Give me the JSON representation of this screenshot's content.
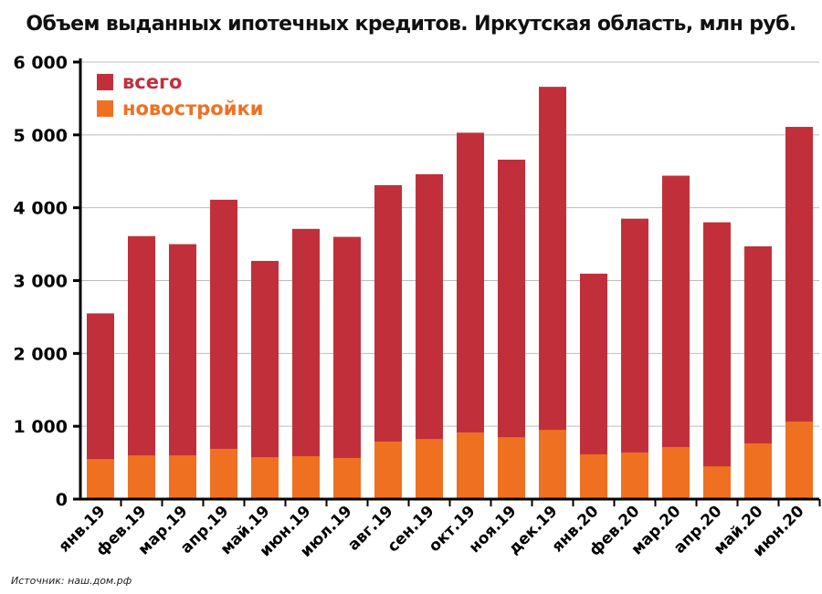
{
  "chart_data": {
    "type": "bar",
    "title": "Объем выданных ипотечных кредитов. Иркутская область, млн руб.",
    "xlabel": "",
    "ylabel": "",
    "ylim": [
      0,
      6000
    ],
    "yticks": [
      0,
      1000,
      2000,
      3000,
      4000,
      5000,
      6000
    ],
    "ytick_labels": [
      "0",
      "1 000",
      "2 000",
      "3 000",
      "4 000",
      "5 000",
      "6 000"
    ],
    "grid": true,
    "legend_position": "top-left",
    "categories": [
      "янв.19",
      "фев.19",
      "мар.19",
      "апр.19",
      "май.19",
      "июн.19",
      "июл.19",
      "авг.19",
      "сен.19",
      "окт.19",
      "ноя.19",
      "дек.19",
      "янв.20",
      "фев.20",
      "мар.20",
      "апр.20",
      "май.20",
      "июн.20"
    ],
    "series": [
      {
        "name": "всего",
        "color": "#c1303a",
        "values": [
          2550,
          3610,
          3500,
          4110,
          3270,
          3710,
          3600,
          4310,
          4460,
          5030,
          4660,
          5660,
          3095,
          3850,
          4440,
          3800,
          3470,
          5110
        ]
      },
      {
        "name": "новостройки",
        "color": "#f07022",
        "values": [
          550,
          600,
          600,
          690,
          575,
          590,
          565,
          790,
          825,
          915,
          850,
          950,
          615,
          640,
          715,
          450,
          765,
          1065
        ]
      }
    ]
  },
  "source": "Источник: наш.дом.рф"
}
